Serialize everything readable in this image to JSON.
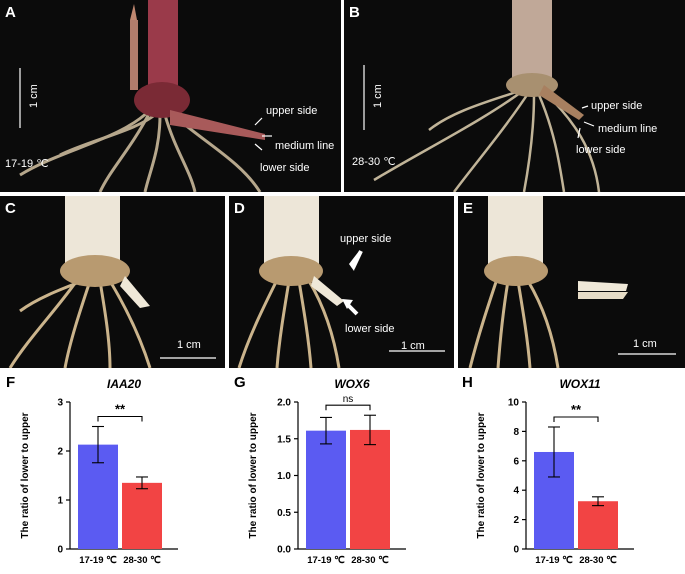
{
  "photos": [
    {
      "label": "A",
      "temp": "17-19 ℃",
      "scale": "1 cm",
      "annotations": {
        "upper": "upper side",
        "medium": "medium line",
        "lower": "lower side"
      }
    },
    {
      "label": "B",
      "temp": "28-30 ℃",
      "scale": "1 cm",
      "annotations": {
        "upper": "upper side",
        "medium": "medium line",
        "lower": "lower side"
      }
    },
    {
      "label": "C",
      "scale": "1 cm"
    },
    {
      "label": "D",
      "scale": "1 cm",
      "annotations": {
        "upper": "upper side",
        "lower": "lower side"
      }
    },
    {
      "label": "E",
      "scale": "1 cm"
    }
  ],
  "colors": {
    "blue": "#5b5bf2",
    "red": "#f24444"
  },
  "chart_data": [
    {
      "panel": "F",
      "type": "bar",
      "title": "IAA20",
      "ylabel": "The ratio of lower to upper",
      "categories": [
        "17-19 ℃",
        "28-30 ℃"
      ],
      "values": [
        2.13,
        1.35
      ],
      "errors": [
        0.37,
        0.12
      ],
      "ylim": [
        0,
        3
      ],
      "yticks": [
        "0",
        "1",
        "2",
        "3"
      ],
      "significance": "**"
    },
    {
      "panel": "G",
      "type": "bar",
      "title": "WOX6",
      "ylabel": "The ratio of lower to upper",
      "categories": [
        "17-19 ℃",
        "28-30 ℃"
      ],
      "values": [
        1.61,
        1.62
      ],
      "errors": [
        0.18,
        0.2
      ],
      "ylim": [
        0,
        2
      ],
      "yticks": [
        "0.0",
        "0.5",
        "1.0",
        "1.5",
        "2.0"
      ],
      "significance": "ns"
    },
    {
      "panel": "H",
      "type": "bar",
      "title": "WOX11",
      "ylabel": "The ratio of lower to upper",
      "categories": [
        "17-19 ℃",
        "28-30 ℃"
      ],
      "values": [
        6.6,
        3.25
      ],
      "errors": [
        1.7,
        0.3
      ],
      "ylim": [
        0,
        10
      ],
      "yticks": [
        "0",
        "2",
        "4",
        "6",
        "8",
        "10"
      ],
      "significance": "**"
    }
  ]
}
